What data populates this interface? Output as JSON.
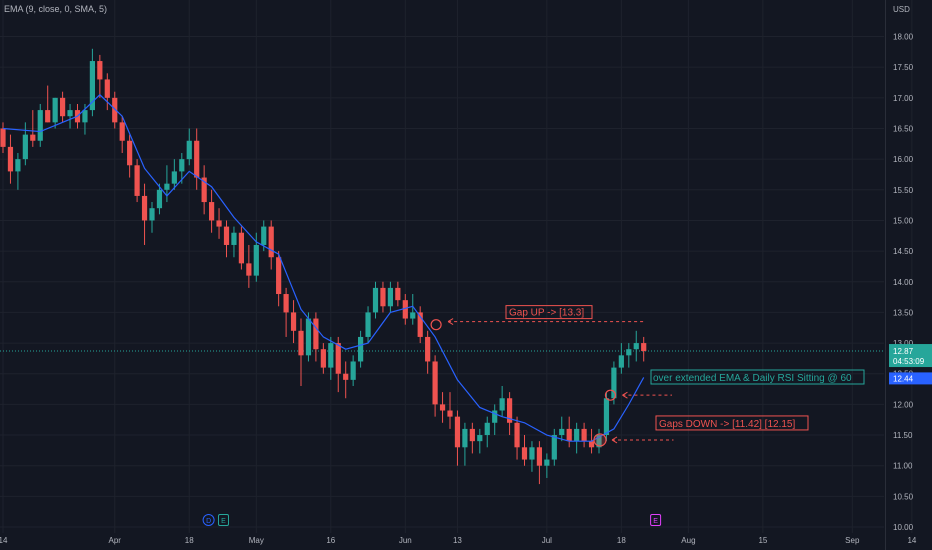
{
  "indicator_legend": "EMA (9, close, 0, SMA, 5)",
  "currency": "USD",
  "colors": {
    "background": "#131722",
    "grid": "#1e222d",
    "up": "#26a69a",
    "down": "#ef5350",
    "ema": "#2962ff",
    "axis_text": "#b2b5be",
    "border": "#2a2e39"
  },
  "chart_data": {
    "type": "candlestick",
    "ylim": [
      10.0,
      18.4
    ],
    "y_ticks": [
      "10.00",
      "10.50",
      "11.00",
      "11.50",
      "12.00",
      "12.50",
      "13.00",
      "13.50",
      "14.00",
      "14.50",
      "15.00",
      "15.50",
      "16.00",
      "16.50",
      "17.00",
      "17.50",
      "18.00"
    ],
    "x_ticks": [
      {
        "index": 0,
        "label": "14"
      },
      {
        "index": 15,
        "label": "Apr"
      },
      {
        "index": 25,
        "label": "18"
      },
      {
        "index": 34,
        "label": "May"
      },
      {
        "index": 44,
        "label": "16"
      },
      {
        "index": 54,
        "label": "Jun"
      },
      {
        "index": 61,
        "label": "13"
      },
      {
        "index": 73,
        "label": "Jul"
      },
      {
        "index": 83,
        "label": "18"
      },
      {
        "index": 92,
        "label": "Aug"
      },
      {
        "index": 102,
        "label": "15"
      },
      {
        "index": 114,
        "label": "Sep"
      },
      {
        "index": 122,
        "label": "14"
      }
    ],
    "ohlc": [
      [
        16.5,
        16.6,
        16.1,
        16.2
      ],
      [
        16.2,
        16.4,
        15.6,
        15.8
      ],
      [
        15.8,
        16.1,
        15.5,
        16.0
      ],
      [
        16.0,
        16.6,
        15.9,
        16.4
      ],
      [
        16.4,
        16.8,
        16.2,
        16.3
      ],
      [
        16.3,
        16.9,
        16.2,
        16.8
      ],
      [
        16.8,
        17.2,
        16.6,
        16.6
      ],
      [
        16.6,
        17.0,
        16.5,
        17.0
      ],
      [
        17.0,
        17.1,
        16.6,
        16.7
      ],
      [
        16.7,
        16.9,
        16.5,
        16.8
      ],
      [
        16.8,
        16.9,
        16.5,
        16.6
      ],
      [
        16.6,
        16.9,
        16.4,
        16.8
      ],
      [
        16.8,
        17.8,
        16.7,
        17.6
      ],
      [
        17.6,
        17.7,
        17.0,
        17.3
      ],
      [
        17.3,
        17.4,
        16.8,
        17.0
      ],
      [
        17.0,
        17.1,
        16.5,
        16.6
      ],
      [
        16.6,
        16.7,
        16.1,
        16.3
      ],
      [
        16.3,
        16.4,
        15.7,
        15.9
      ],
      [
        15.9,
        16.0,
        15.3,
        15.4
      ],
      [
        15.4,
        15.6,
        14.6,
        15.0
      ],
      [
        15.0,
        15.3,
        14.8,
        15.2
      ],
      [
        15.2,
        15.6,
        15.1,
        15.5
      ],
      [
        15.5,
        15.9,
        15.3,
        15.6
      ],
      [
        15.6,
        16.0,
        15.5,
        15.8
      ],
      [
        15.8,
        16.1,
        15.6,
        16.0
      ],
      [
        16.0,
        16.5,
        15.9,
        16.3
      ],
      [
        16.3,
        16.5,
        15.5,
        15.7
      ],
      [
        15.7,
        15.9,
        15.1,
        15.3
      ],
      [
        15.3,
        15.5,
        14.8,
        15.0
      ],
      [
        15.0,
        15.2,
        14.7,
        14.9
      ],
      [
        14.9,
        15.0,
        14.4,
        14.6
      ],
      [
        14.6,
        14.9,
        14.4,
        14.8
      ],
      [
        14.8,
        14.9,
        14.2,
        14.3
      ],
      [
        14.3,
        14.6,
        13.9,
        14.1
      ],
      [
        14.1,
        14.8,
        14.0,
        14.6
      ],
      [
        14.6,
        15.0,
        14.5,
        14.9
      ],
      [
        14.9,
        15.0,
        14.2,
        14.4
      ],
      [
        14.4,
        14.5,
        13.6,
        13.8
      ],
      [
        13.8,
        13.9,
        13.1,
        13.5
      ],
      [
        13.5,
        13.7,
        13.0,
        13.2
      ],
      [
        13.2,
        13.4,
        12.3,
        12.8
      ],
      [
        12.8,
        13.5,
        12.7,
        13.4
      ],
      [
        13.4,
        13.5,
        12.7,
        12.9
      ],
      [
        12.9,
        13.0,
        12.5,
        12.6
      ],
      [
        12.6,
        13.1,
        12.4,
        13.0
      ],
      [
        13.0,
        13.1,
        12.2,
        12.5
      ],
      [
        12.5,
        12.7,
        12.1,
        12.4
      ],
      [
        12.4,
        12.8,
        12.3,
        12.7
      ],
      [
        12.7,
        13.2,
        12.6,
        13.1
      ],
      [
        13.1,
        13.6,
        13.0,
        13.5
      ],
      [
        13.5,
        14.0,
        13.4,
        13.9
      ],
      [
        13.9,
        14.0,
        13.5,
        13.6
      ],
      [
        13.6,
        14.0,
        13.5,
        13.9
      ],
      [
        13.9,
        14.0,
        13.6,
        13.7
      ],
      [
        13.7,
        13.8,
        13.3,
        13.4
      ],
      [
        13.4,
        13.8,
        13.3,
        13.5
      ],
      [
        13.5,
        13.6,
        13.0,
        13.1
      ],
      [
        13.1,
        13.2,
        12.5,
        12.7
      ],
      [
        12.7,
        12.8,
        11.8,
        12.0
      ],
      [
        12.0,
        12.2,
        11.7,
        11.9
      ],
      [
        11.9,
        12.2,
        11.6,
        11.8
      ],
      [
        11.8,
        11.9,
        11.0,
        11.3
      ],
      [
        11.3,
        11.7,
        11.0,
        11.6
      ],
      [
        11.6,
        11.7,
        11.2,
        11.4
      ],
      [
        11.4,
        11.6,
        11.2,
        11.5
      ],
      [
        11.5,
        11.8,
        11.3,
        11.7
      ],
      [
        11.7,
        12.0,
        11.5,
        11.9
      ],
      [
        11.9,
        12.3,
        11.8,
        12.1
      ],
      [
        12.1,
        12.2,
        11.5,
        11.7
      ],
      [
        11.7,
        11.8,
        11.1,
        11.3
      ],
      [
        11.3,
        11.5,
        11.0,
        11.1
      ],
      [
        11.1,
        11.4,
        10.9,
        11.3
      ],
      [
        11.3,
        11.4,
        10.7,
        11.0
      ],
      [
        11.0,
        11.2,
        10.8,
        11.1
      ],
      [
        11.1,
        11.6,
        11.0,
        11.5
      ],
      [
        11.5,
        11.8,
        11.4,
        11.6
      ],
      [
        11.6,
        11.8,
        11.3,
        11.4
      ],
      [
        11.4,
        11.7,
        11.2,
        11.6
      ],
      [
        11.6,
        11.7,
        11.3,
        11.4
      ],
      [
        11.4,
        11.6,
        11.2,
        11.3
      ],
      [
        11.3,
        11.6,
        11.2,
        11.5
      ],
      [
        11.5,
        12.2,
        11.4,
        12.1
      ],
      [
        12.1,
        12.7,
        12.0,
        12.6
      ],
      [
        12.6,
        13.0,
        12.5,
        12.8
      ],
      [
        12.8,
        13.0,
        12.6,
        12.9
      ],
      [
        12.9,
        13.2,
        12.7,
        13.0
      ],
      [
        13.0,
        13.1,
        12.7,
        12.87
      ]
    ],
    "ema_points": [
      [
        0,
        16.5
      ],
      [
        5,
        16.45
      ],
      [
        10,
        16.7
      ],
      [
        13,
        17.05
      ],
      [
        16,
        16.7
      ],
      [
        19,
        15.85
      ],
      [
        22,
        15.4
      ],
      [
        25,
        15.8
      ],
      [
        28,
        15.55
      ],
      [
        31,
        15.05
      ],
      [
        34,
        14.65
      ],
      [
        37,
        14.45
      ],
      [
        40,
        13.55
      ],
      [
        43,
        13.1
      ],
      [
        46,
        12.9
      ],
      [
        49,
        13.0
      ],
      [
        52,
        13.5
      ],
      [
        55,
        13.6
      ],
      [
        58,
        13.1
      ],
      [
        61,
        12.4
      ],
      [
        64,
        11.95
      ],
      [
        67,
        11.8
      ],
      [
        70,
        11.7
      ],
      [
        73,
        11.5
      ],
      [
        76,
        11.4
      ],
      [
        79,
        11.4
      ],
      [
        82,
        11.6
      ],
      [
        84,
        12.0
      ],
      [
        86,
        12.44
      ]
    ],
    "current_price": "12.87",
    "countdown": "04:53:09",
    "ema_value": "12.44",
    "price_line_value": 12.87,
    "annotations": [
      {
        "text": "Gap UP -> [13.3]",
        "marker_index": 58,
        "marker_value": 13.3,
        "arrow_value": 13.35,
        "line_to_index": 86
      },
      {
        "text": "over extended EMA & Daily RSI Sitting @ 60",
        "marker_index": 0,
        "marker_value": 0,
        "arrow_value": 0,
        "line_to_index": 0
      },
      {
        "text": "Gaps DOWN -> [11.42] [12.15]",
        "marker_index": 80,
        "marker_value": 11.42,
        "arrow_value": 11.42,
        "line_to_index": 90
      }
    ],
    "gap_markers": [
      {
        "index": 81,
        "value": 12.15
      }
    ],
    "event_badges": [
      {
        "index": 28,
        "label": "D",
        "kind": "dividend"
      },
      {
        "index": 30,
        "label": "E",
        "kind": "earnings"
      },
      {
        "index": 88,
        "label": "E",
        "kind": "earnings-upcoming"
      }
    ]
  }
}
